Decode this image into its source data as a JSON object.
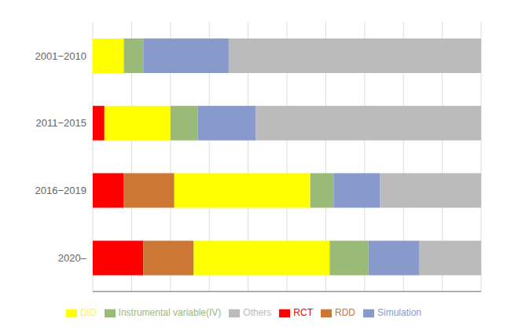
{
  "chart_data": {
    "type": "bar",
    "orientation": "horizontal",
    "stacked": true,
    "categories": [
      "2020–",
      "2016−2019",
      "2011−2015",
      "2001−2010"
    ],
    "series": [
      {
        "name": "RCT",
        "color": "#ff0000",
        "values": [
          0.13,
          0.08,
          0.03,
          0.0
        ]
      },
      {
        "name": "RDD",
        "color": "#cc7733",
        "values": [
          0.13,
          0.13,
          0.0,
          0.0
        ]
      },
      {
        "name": "DID",
        "color": "#ffff00",
        "values": [
          0.35,
          0.35,
          0.17,
          0.08
        ]
      },
      {
        "name": "Instrumental variable(IV)",
        "color": "#99bb77",
        "values": [
          0.1,
          0.06,
          0.07,
          0.05
        ]
      },
      {
        "name": "Simulation",
        "color": "#8899cc",
        "values": [
          0.13,
          0.12,
          0.15,
          0.22
        ]
      },
      {
        "name": "Others",
        "color": "#bbbbbb",
        "values": [
          0.16,
          0.26,
          0.58,
          0.65
        ]
      }
    ],
    "xlim": [
      0,
      1.0
    ],
    "xticks": [
      0,
      0.1,
      0.2,
      0.3,
      0.4,
      0.5,
      0.6,
      0.7,
      0.8,
      0.9,
      1.0
    ],
    "grid": true,
    "legend": "bottom",
    "tick_labels": "y"
  }
}
